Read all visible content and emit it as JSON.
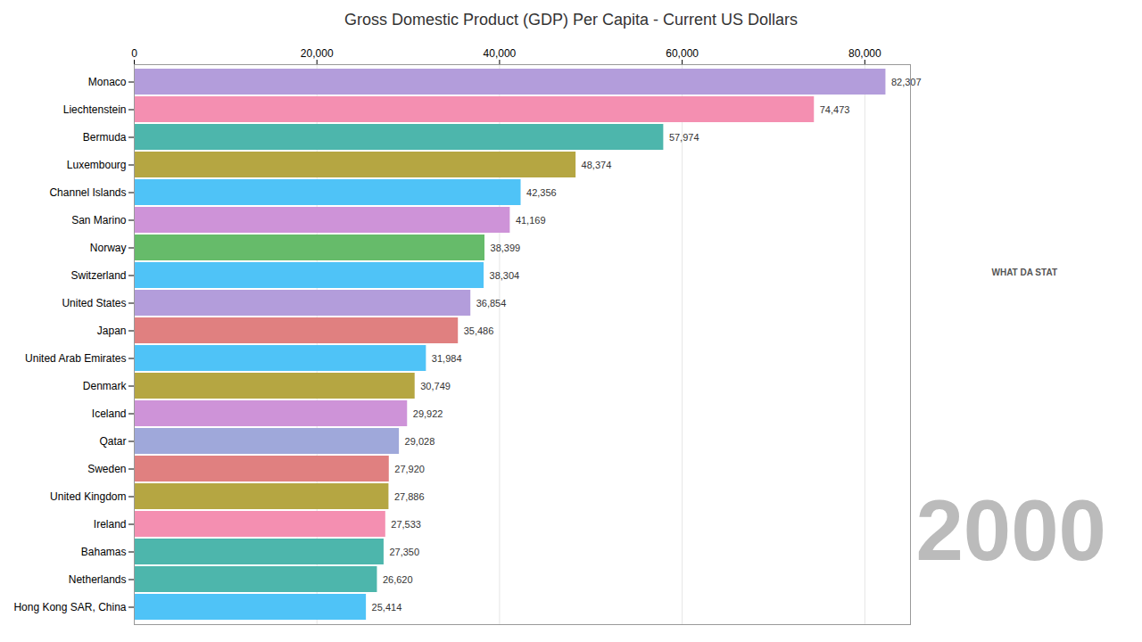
{
  "chart_data": {
    "type": "bar",
    "orientation": "horizontal",
    "title": "Gross Domestic Product (GDP) Per Capita - Current US Dollars",
    "categories": [
      "Monaco",
      "Liechtenstein",
      "Bermuda",
      "Luxembourg",
      "Channel Islands",
      "San Marino",
      "Norway",
      "Switzerland",
      "United States",
      "Japan",
      "United Arab Emirates",
      "Denmark",
      "Iceland",
      "Qatar",
      "Sweden",
      "United Kingdom",
      "Ireland",
      "Bahamas",
      "Netherlands",
      "Hong Kong SAR, China"
    ],
    "values": [
      82307,
      74473,
      57974,
      48374,
      42356,
      41169,
      38399,
      38304,
      36854,
      35486,
      31984,
      30749,
      29922,
      29028,
      27920,
      27886,
      27533,
      27350,
      26620,
      25414
    ],
    "value_labels": [
      "82,307",
      "74,473",
      "57,974",
      "48,374",
      "42,356",
      "41,169",
      "38,399",
      "38,304",
      "36,854",
      "35,486",
      "31,984",
      "30,749",
      "29,922",
      "29,028",
      "27,920",
      "27,886",
      "27,533",
      "27,350",
      "26,620",
      "25,414"
    ],
    "colors": [
      "#b39ddb",
      "#f48fb1",
      "#4db6ac",
      "#b5a642",
      "#4fc3f7",
      "#ce93d8",
      "#66bb6a",
      "#4fc3f7",
      "#b39ddb",
      "#e08080",
      "#4fc3f7",
      "#b5a642",
      "#ce93d8",
      "#9fa8da",
      "#e08080",
      "#b5a642",
      "#f48fb1",
      "#4db6ac",
      "#4db6ac",
      "#4fc3f7"
    ],
    "xlim": [
      0,
      85000
    ],
    "xticks": [
      0,
      {
        "value": 20000,
        "label": "20,000"
      },
      {
        "value": 40000,
        "label": "40,000"
      },
      {
        "value": 60000,
        "label": "60,000"
      },
      {
        "value": 80000,
        "label": "80,000"
      }
    ],
    "grid": true,
    "data_labels": true,
    "annotations": [
      "2000",
      "WHAT DA STAT"
    ]
  }
}
